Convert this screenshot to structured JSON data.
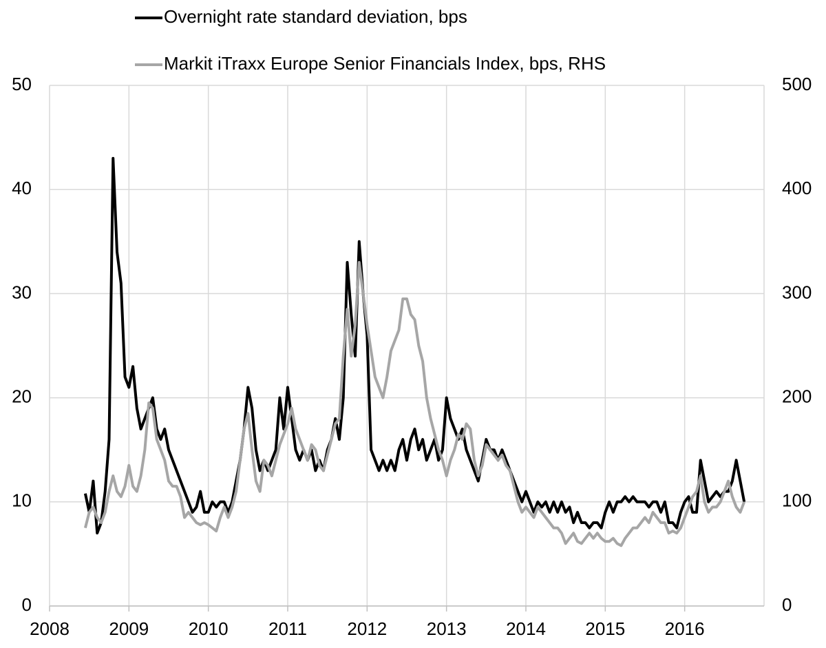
{
  "chart_data": {
    "type": "line",
    "legend": "top",
    "grid": true,
    "xlim": [
      2008,
      2017
    ],
    "xticks": [
      2008,
      2009,
      2010,
      2011,
      2012,
      2013,
      2014,
      2015,
      2016
    ],
    "ylim": [
      0,
      50
    ],
    "yticks": [
      0,
      10,
      20,
      30,
      40,
      50
    ],
    "y2lim": [
      0,
      500
    ],
    "y2ticks": [
      0,
      100,
      200,
      300,
      400,
      500
    ],
    "x": [
      2008.45,
      2008.5,
      2008.55,
      2008.6,
      2008.65,
      2008.7,
      2008.75,
      2008.8,
      2008.85,
      2008.9,
      2008.95,
      2009.0,
      2009.05,
      2009.1,
      2009.15,
      2009.2,
      2009.25,
      2009.3,
      2009.35,
      2009.4,
      2009.45,
      2009.5,
      2009.55,
      2009.6,
      2009.65,
      2009.7,
      2009.75,
      2009.8,
      2009.85,
      2009.9,
      2009.95,
      2010.0,
      2010.05,
      2010.1,
      2010.15,
      2010.2,
      2010.25,
      2010.3,
      2010.35,
      2010.4,
      2010.45,
      2010.5,
      2010.55,
      2010.6,
      2010.65,
      2010.7,
      2010.75,
      2010.8,
      2010.85,
      2010.9,
      2010.95,
      2011.0,
      2011.05,
      2011.1,
      2011.15,
      2011.2,
      2011.25,
      2011.3,
      2011.35,
      2011.4,
      2011.45,
      2011.5,
      2011.55,
      2011.6,
      2011.65,
      2011.7,
      2011.75,
      2011.8,
      2011.85,
      2011.9,
      2011.95,
      2012.0,
      2012.05,
      2012.1,
      2012.15,
      2012.2,
      2012.25,
      2012.3,
      2012.35,
      2012.4,
      2012.45,
      2012.5,
      2012.55,
      2012.6,
      2012.65,
      2012.7,
      2012.75,
      2012.8,
      2012.85,
      2012.9,
      2012.95,
      2013.0,
      2013.05,
      2013.1,
      2013.15,
      2013.2,
      2013.25,
      2013.3,
      2013.35,
      2013.4,
      2013.45,
      2013.5,
      2013.55,
      2013.6,
      2013.65,
      2013.7,
      2013.75,
      2013.8,
      2013.85,
      2013.9,
      2013.95,
      2014.0,
      2014.05,
      2014.1,
      2014.15,
      2014.2,
      2014.25,
      2014.3,
      2014.35,
      2014.4,
      2014.45,
      2014.5,
      2014.55,
      2014.6,
      2014.65,
      2014.7,
      2014.75,
      2014.8,
      2014.85,
      2014.9,
      2014.95,
      2015.0,
      2015.05,
      2015.1,
      2015.15,
      2015.2,
      2015.25,
      2015.3,
      2015.35,
      2015.4,
      2015.45,
      2015.5,
      2015.55,
      2015.6,
      2015.65,
      2015.7,
      2015.75,
      2015.8,
      2015.85,
      2015.9,
      2015.95,
      2016.0,
      2016.05,
      2016.1,
      2016.15,
      2016.2,
      2016.25,
      2016.3,
      2016.35,
      2016.4,
      2016.45,
      2016.5,
      2016.55,
      2016.6,
      2016.65,
      2016.7,
      2016.75
    ],
    "series": [
      {
        "name": "Overnight rate standard deviation, bps",
        "color": "#000000",
        "values": [
          10.8,
          9,
          12,
          7,
          8,
          11,
          16,
          43,
          34,
          31,
          22,
          21,
          23,
          19,
          17,
          18,
          19,
          20,
          17,
          16,
          17,
          15,
          14,
          13,
          12,
          11,
          10,
          9,
          9.5,
          11,
          9,
          9,
          10,
          9.5,
          10,
          10,
          9,
          10,
          12,
          14,
          17,
          21,
          19,
          15,
          13,
          14,
          13,
          14,
          15,
          20,
          17,
          21,
          18,
          15,
          14,
          15,
          14,
          15,
          13,
          14,
          13,
          15,
          16,
          18,
          16,
          20,
          33,
          28,
          24,
          35,
          30,
          26,
          15,
          14,
          13,
          14,
          13,
          14,
          13,
          15,
          16,
          14,
          16,
          17,
          15,
          16,
          14,
          15,
          16,
          14,
          15,
          20,
          18,
          17,
          16,
          17,
          15,
          14,
          13,
          12,
          14,
          16,
          15,
          15,
          14,
          15,
          14,
          13,
          12,
          11,
          10,
          11,
          10,
          9,
          10,
          9.5,
          10,
          9,
          10,
          9,
          10,
          9,
          9.5,
          8,
          9,
          8,
          8,
          7.5,
          8,
          8,
          7.5,
          9,
          10,
          9,
          10,
          10,
          10.5,
          10,
          10.5,
          10,
          10,
          10,
          9.5,
          10,
          10,
          9,
          10,
          8,
          8,
          7.5,
          9,
          10,
          10.5,
          9,
          9,
          14,
          12,
          10,
          10.5,
          11,
          10.5,
          11,
          11,
          12,
          14,
          12,
          10
        ]
      },
      {
        "name": "Markit iTraxx Europe Senior Financials Index, bps, RHS",
        "color": "#a6a6a6",
        "axis": "y2",
        "values": [
          75,
          90,
          95,
          85,
          80,
          90,
          110,
          125,
          110,
          105,
          115,
          135,
          115,
          110,
          125,
          150,
          195,
          190,
          160,
          150,
          140,
          120,
          115,
          115,
          105,
          85,
          90,
          85,
          80,
          78,
          80,
          78,
          75,
          72,
          85,
          95,
          85,
          95,
          110,
          140,
          170,
          185,
          150,
          120,
          110,
          140,
          135,
          125,
          140,
          155,
          165,
          175,
          190,
          170,
          160,
          150,
          140,
          155,
          150,
          135,
          130,
          145,
          160,
          175,
          180,
          240,
          285,
          240,
          270,
          330,
          300,
          270,
          245,
          220,
          210,
          200,
          220,
          245,
          255,
          265,
          295,
          295,
          280,
          275,
          250,
          235,
          200,
          180,
          165,
          150,
          140,
          125,
          140,
          150,
          165,
          160,
          175,
          170,
          140,
          125,
          135,
          155,
          150,
          145,
          140,
          145,
          135,
          130,
          115,
          100,
          90,
          95,
          90,
          85,
          95,
          90,
          85,
          80,
          75,
          75,
          70,
          60,
          65,
          70,
          62,
          60,
          65,
          70,
          65,
          70,
          65,
          62,
          62,
          65,
          60,
          58,
          65,
          70,
          75,
          75,
          80,
          85,
          80,
          90,
          85,
          80,
          80,
          70,
          72,
          70,
          75,
          85,
          95,
          105,
          110,
          125,
          100,
          90,
          95,
          95,
          100,
          110,
          120,
          105,
          95,
          90,
          100
        ]
      }
    ]
  }
}
